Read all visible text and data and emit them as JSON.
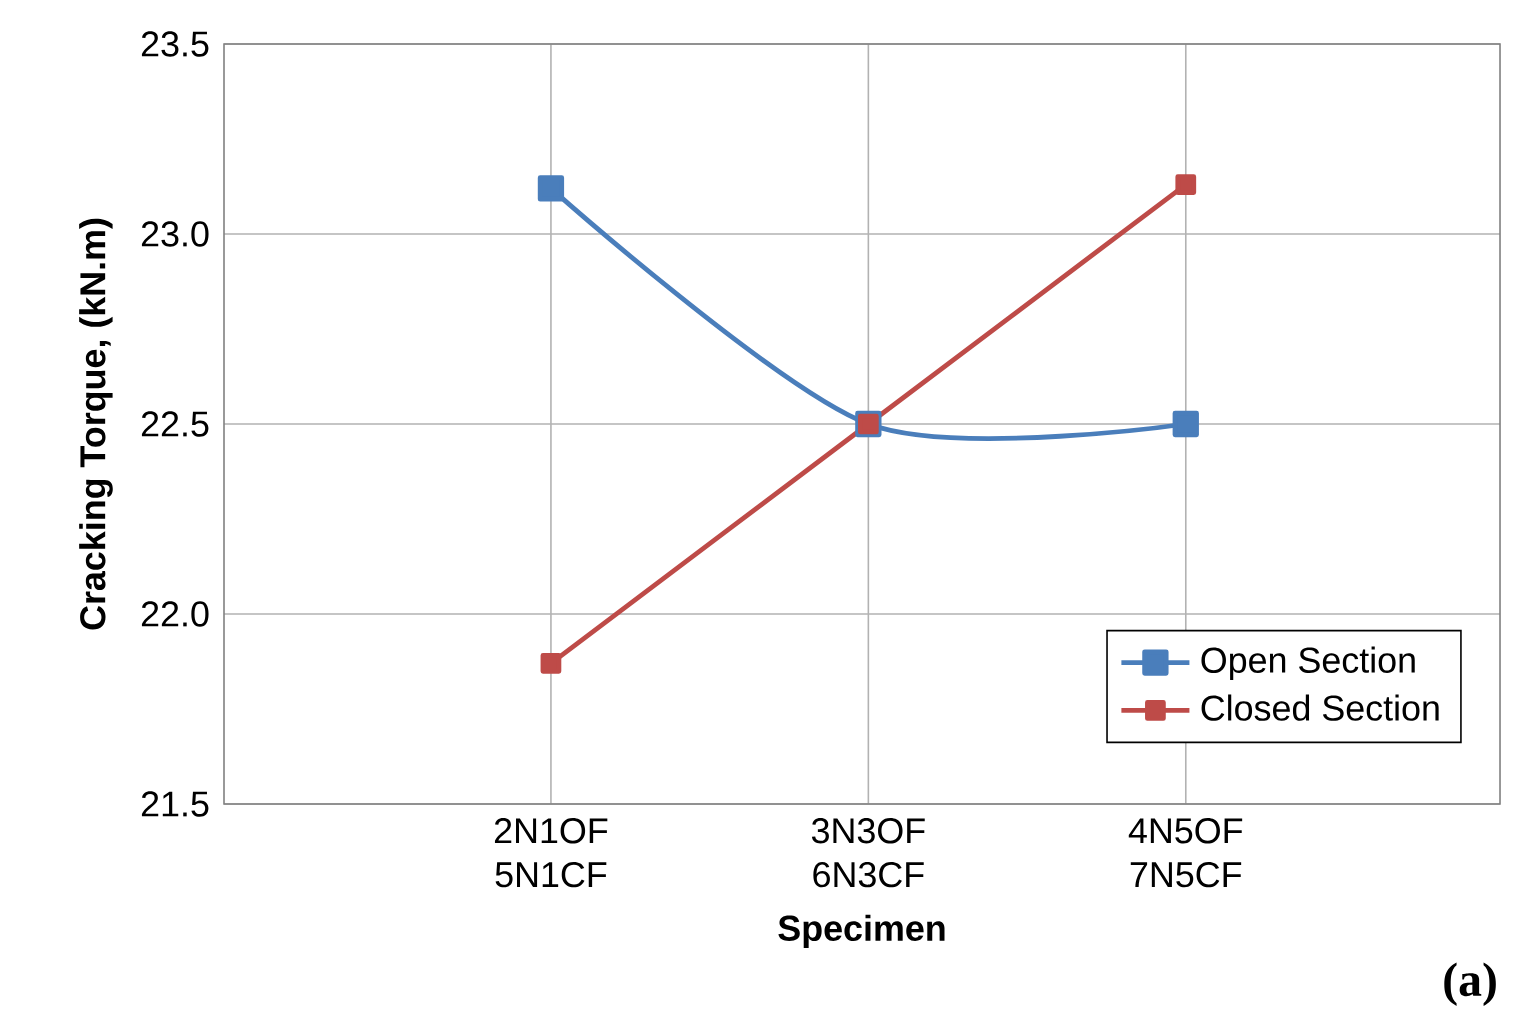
{
  "chart_data": {
    "type": "line",
    "xlabel": "Specimen",
    "ylabel": "Cracking Torque, (kN.m)",
    "categories": [
      "2N1OF 5N1CF",
      "3N3OF 6N3CF",
      "4N5OF 7N5CF"
    ],
    "series": [
      {
        "name": "Open Section",
        "color": "#4a7ebb",
        "values": [
          23.12,
          22.5,
          22.5
        ]
      },
      {
        "name": "Closed Section",
        "color": "#be4b48",
        "values": [
          21.87,
          22.5,
          23.13
        ]
      }
    ],
    "ylim": [
      21.5,
      23.5
    ],
    "yticks": [
      21.5,
      {
        "value": 22.0,
        "label": "22.0"
      },
      22.5,
      {
        "value": 23.0,
        "label": "23.0"
      },
      23.5
    ],
    "grid": true,
    "legend": "bottom right",
    "marker": "square",
    "line_style": "solid",
    "annotations": [
      "(a)"
    ]
  }
}
